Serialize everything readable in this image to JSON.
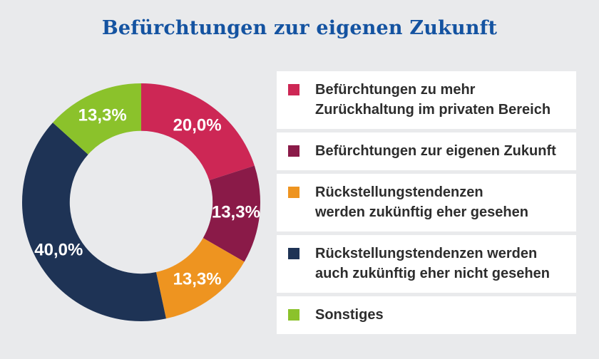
{
  "page": {
    "title": "Befürchtungen zur eigenen Zukunft",
    "background_color": "#e9eaec",
    "title_color": "#1453a1"
  },
  "chart_data": {
    "type": "pie",
    "subtype": "donut",
    "title": "Befürchtungen zur eigenen Zukunft",
    "start_angle_deg": 0,
    "direction": "clockwise",
    "inner_radius_ratio": 0.6,
    "value_label_color": "#ffffff",
    "legend_position": "right",
    "segments": [
      {
        "label": "Befürchtungen zu mehr Zurückhaltung im privaten Bereich",
        "legend_lines": [
          "Befürchtungen zu mehr",
          "Zurückhaltung im privaten Bereich"
        ],
        "value_pct": 20.0,
        "value_display": "20,0%",
        "color": "#cd2755"
      },
      {
        "label": "Befürchtungen zur eigenen Zukunft",
        "legend_lines": [
          "Befürchtungen zur eigenen Zukunft"
        ],
        "value_pct": 13.3,
        "value_display": "13,3%",
        "color": "#8a1a48"
      },
      {
        "label": "Rückstellungstendenzen werden zukünftig eher gesehen",
        "legend_lines": [
          "Rückstellungstendenzen",
          "werden zukünftig eher gesehen"
        ],
        "value_pct": 13.3,
        "value_display": "13,3%",
        "color": "#ee9420"
      },
      {
        "label": "Rückstellungstendenzen werden auch zukünftig eher nicht gesehen",
        "legend_lines": [
          "Rückstellungstendenzen werden",
          "auch zukünftig eher nicht gesehen"
        ],
        "value_pct": 40.0,
        "value_display": "40,0%",
        "color": "#1e3355"
      },
      {
        "label": "Sonstiges",
        "legend_lines": [
          "Sonstiges"
        ],
        "value_pct": 13.3,
        "value_display": "13,3%",
        "color": "#8bc22b"
      }
    ]
  },
  "legend": {
    "card_background": "#ffffff",
    "text_color": "#2d2d2d"
  }
}
